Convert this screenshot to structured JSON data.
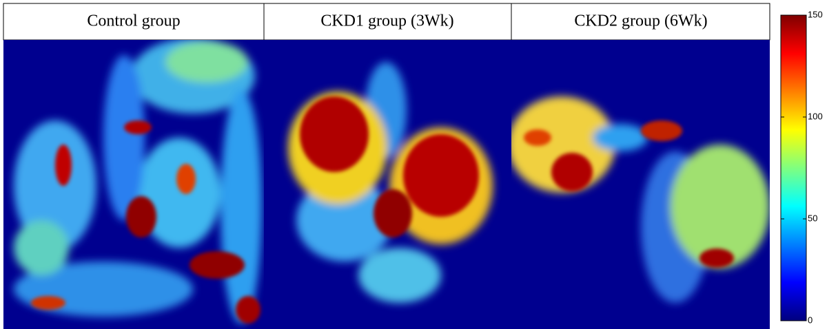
{
  "panels": {
    "headers": [
      "Control group",
      "CKD1 group (3Wk)",
      "CKD2 group (6Wk)"
    ]
  },
  "colorbar": {
    "lim": [
      0,
      150
    ],
    "ticks": [
      0,
      50,
      100,
      150
    ]
  }
}
